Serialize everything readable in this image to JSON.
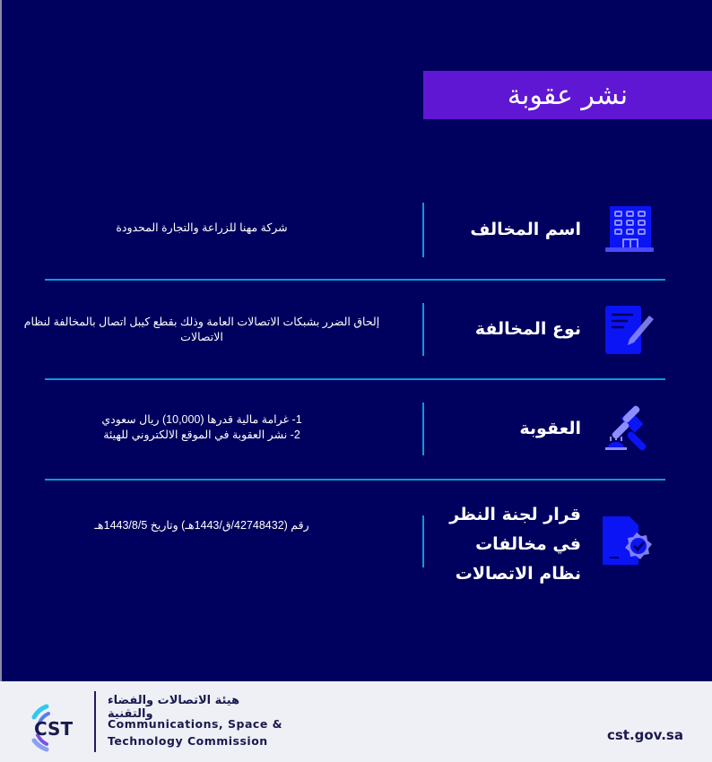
{
  "title": "نشر عقوبة",
  "rows": [
    {
      "label": "اسم المخالف",
      "value": "شركة مهنا للزراعة والتجارة المحدودة",
      "icon": "building-icon"
    },
    {
      "label": "نوع المخالفة",
      "value": "إلحاق الضرر بشبكات الاتصالات العامة وذلك بقطع كيبل اتصال بالمخالفة لنظام الاتصالات",
      "icon": "document-pen-icon"
    },
    {
      "label": "العقوبة",
      "value_lines": [
        "1- غرامة مالية قدرها (10,000) ريال سعودي",
        "2- نشر العقوبة في الموقع الالكتروني للهيئة"
      ],
      "icon": "gavel-icon"
    },
    {
      "label_lines": [
        "قرار لجنة النظر",
        "في مخالفات",
        "نظام الاتصالات"
      ],
      "value": "رقم (42748432/ق/1443هـ) وتاريخ 1443/8/5هـ",
      "icon": "document-badge-check-icon"
    }
  ],
  "footer": {
    "logo_text": "CST",
    "org_arabic": "هيئة الاتصالات والفضاء والتقنية",
    "org_english_1": "Communications, Space &",
    "org_english_2": "Technology Commission",
    "website": "cst.gov.sa"
  },
  "colors": {
    "background": "#00005e",
    "banner": "#5f17d4",
    "divider": "#0a9bd6",
    "icon": "#0a14f5",
    "footer": "#eff0f6"
  }
}
